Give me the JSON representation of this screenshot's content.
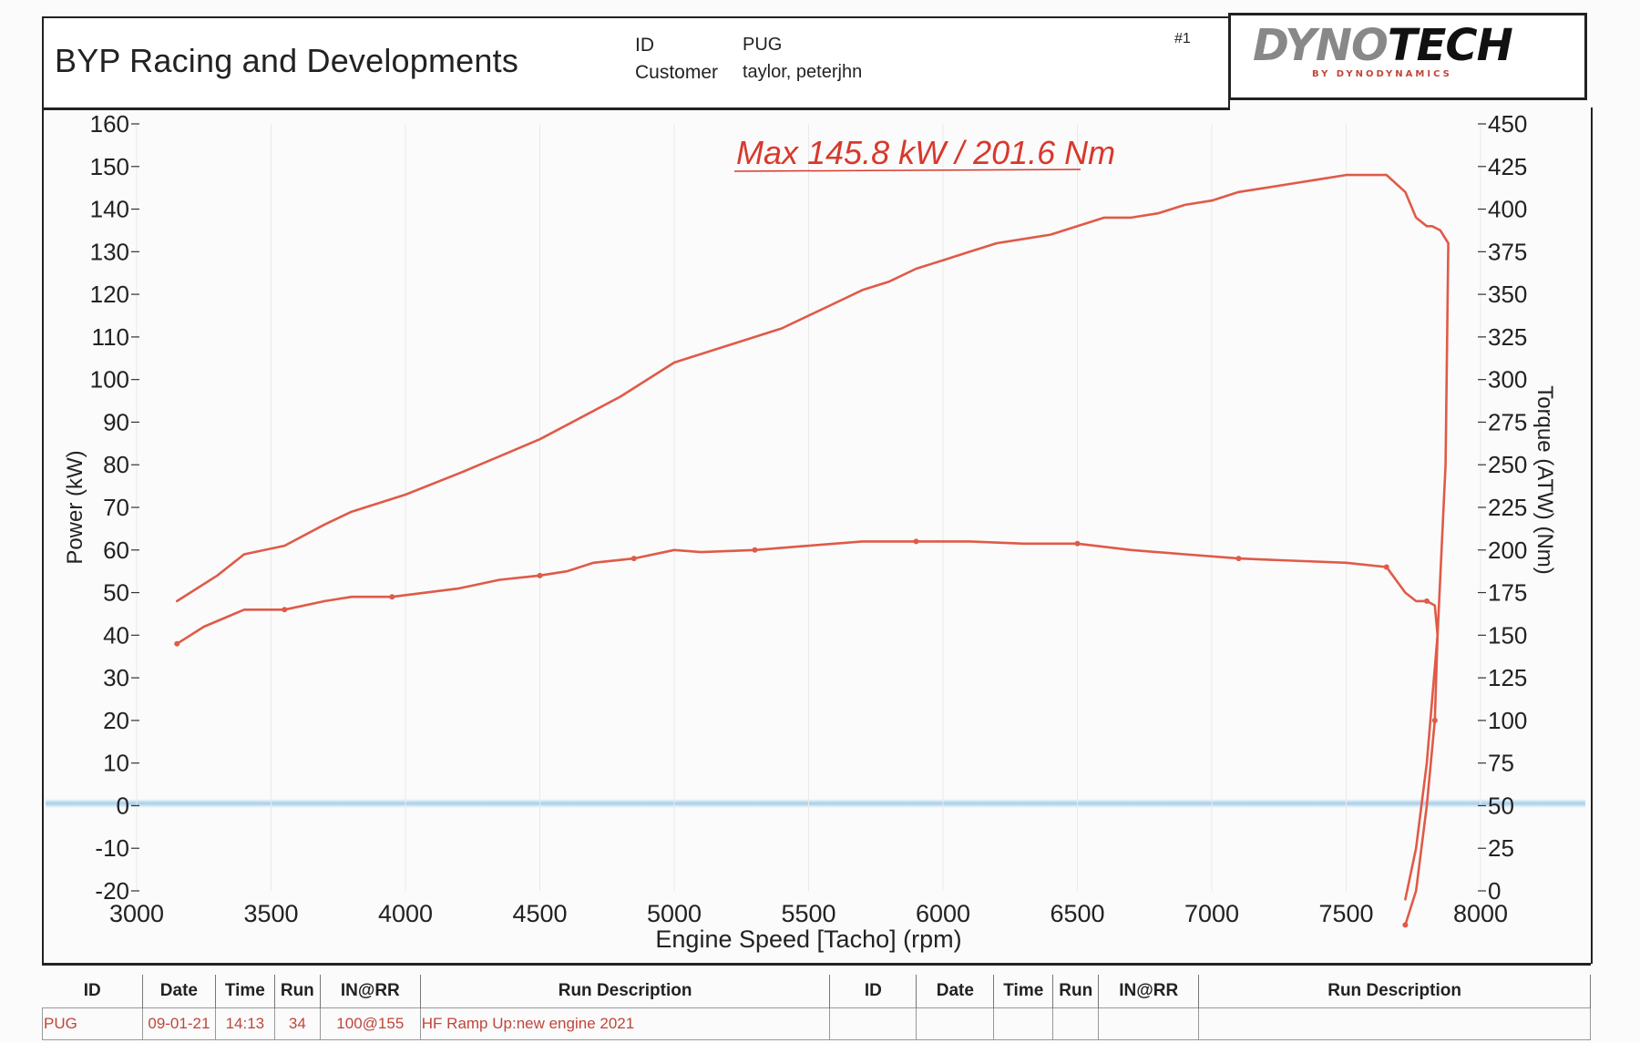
{
  "header": {
    "company": "BYP Racing and Developments",
    "id_label": "ID",
    "id_value": "PUG",
    "customer_label": "Customer",
    "customer_value": "taylor, peterjhn",
    "run_number": "#1",
    "logo_text_a": "DYNO",
    "logo_text_b": "TECH",
    "logo_sub": "BY DYNODYNAMICS"
  },
  "colors": {
    "curve": "#e05a48",
    "annotation": "#d9382c",
    "axis": "#333333",
    "zero_band": "#8fc4e8"
  },
  "chart_data": {
    "type": "line",
    "annotation": "Max 145.8 kW  / 201.6 Nm",
    "xlabel": "Engine Speed [Tacho] (rpm)",
    "ylabel": "Power (kW)",
    "y2label": "Torque (ATW) (Nm)",
    "xlim": [
      3000,
      8000
    ],
    "ylim": [
      -20,
      160
    ],
    "y2lim": [
      0,
      450
    ],
    "x_ticks": [
      "3000",
      "3500",
      "4000",
      "4500",
      "5000",
      "5500",
      "6000",
      "6500",
      "7000",
      "7500",
      "8000"
    ],
    "y_ticks": [
      "160",
      "150",
      "140",
      "130",
      "120",
      "110",
      "100",
      "90",
      "80",
      "70",
      "60",
      "50",
      "40",
      "30",
      "20",
      "10",
      "0",
      "-10",
      "-20"
    ],
    "y2_ticks": [
      "450",
      "425",
      "400",
      "375",
      "350",
      "325",
      "300",
      "275",
      "250",
      "225",
      "200",
      "175",
      "150",
      "125",
      "100",
      "75",
      "50",
      "25",
      "0"
    ],
    "grid": true,
    "series": [
      {
        "axis": "left",
        "x": [
          3150,
          3300,
          3400,
          3550,
          3700,
          3800,
          4000,
          4200,
          4350,
          4500,
          4650,
          4800,
          5000,
          5100,
          5200,
          5300,
          5400,
          5600,
          5700,
          5800,
          5900,
          6000,
          6100,
          6200,
          6300,
          6400,
          6500,
          6600,
          6700,
          6800,
          6900,
          7000,
          7100,
          7200,
          7300,
          7400,
          7500,
          7600,
          7650,
          7720,
          7760,
          7800,
          7820,
          7850,
          7880,
          7870,
          7840,
          7800,
          7760,
          7720
        ],
        "values": [
          48,
          54,
          59,
          61,
          66,
          69,
          73,
          78,
          82,
          86,
          91,
          96,
          104,
          106,
          108,
          110,
          112,
          118,
          121,
          123,
          126,
          128,
          130,
          132,
          133,
          134,
          136,
          138,
          138,
          139,
          141,
          142,
          144,
          145,
          146,
          147,
          148,
          148,
          148,
          144,
          138,
          136,
          136,
          135,
          132,
          80,
          40,
          10,
          -10,
          -22
        ]
      },
      {
        "axis": "left",
        "x": [
          3150,
          3250,
          3400,
          3550,
          3700,
          3800,
          3950,
          4200,
          4350,
          4500,
          4600,
          4700,
          4850,
          5000,
          5100,
          5300,
          5500,
          5700,
          5900,
          6100,
          6300,
          6500,
          6700,
          6900,
          7100,
          7300,
          7500,
          7650,
          7720,
          7760,
          7800,
          7830,
          7840,
          7830,
          7800,
          7760,
          7720
        ],
        "values": [
          38,
          42,
          46,
          46,
          48,
          49,
          49,
          51,
          53,
          54,
          55,
          57,
          58,
          60,
          59.5,
          60,
          61,
          62,
          62,
          62,
          61.5,
          61.5,
          60,
          59,
          58,
          57.5,
          57,
          56,
          50,
          48,
          48,
          47,
          40,
          20,
          0,
          -20,
          -28
        ]
      }
    ]
  },
  "footer": {
    "headers": [
      "ID",
      "Date",
      "Time",
      "Run",
      "IN@RR",
      "Run Description",
      "ID",
      "Date",
      "Time",
      "Run",
      "IN@RR",
      "Run Description"
    ],
    "row": [
      "PUG",
      "09-01-21",
      "14:13",
      "34",
      "100@155",
      "HF Ramp Up:new engine 2021",
      "",
      "",
      "",
      "",
      "",
      ""
    ]
  }
}
